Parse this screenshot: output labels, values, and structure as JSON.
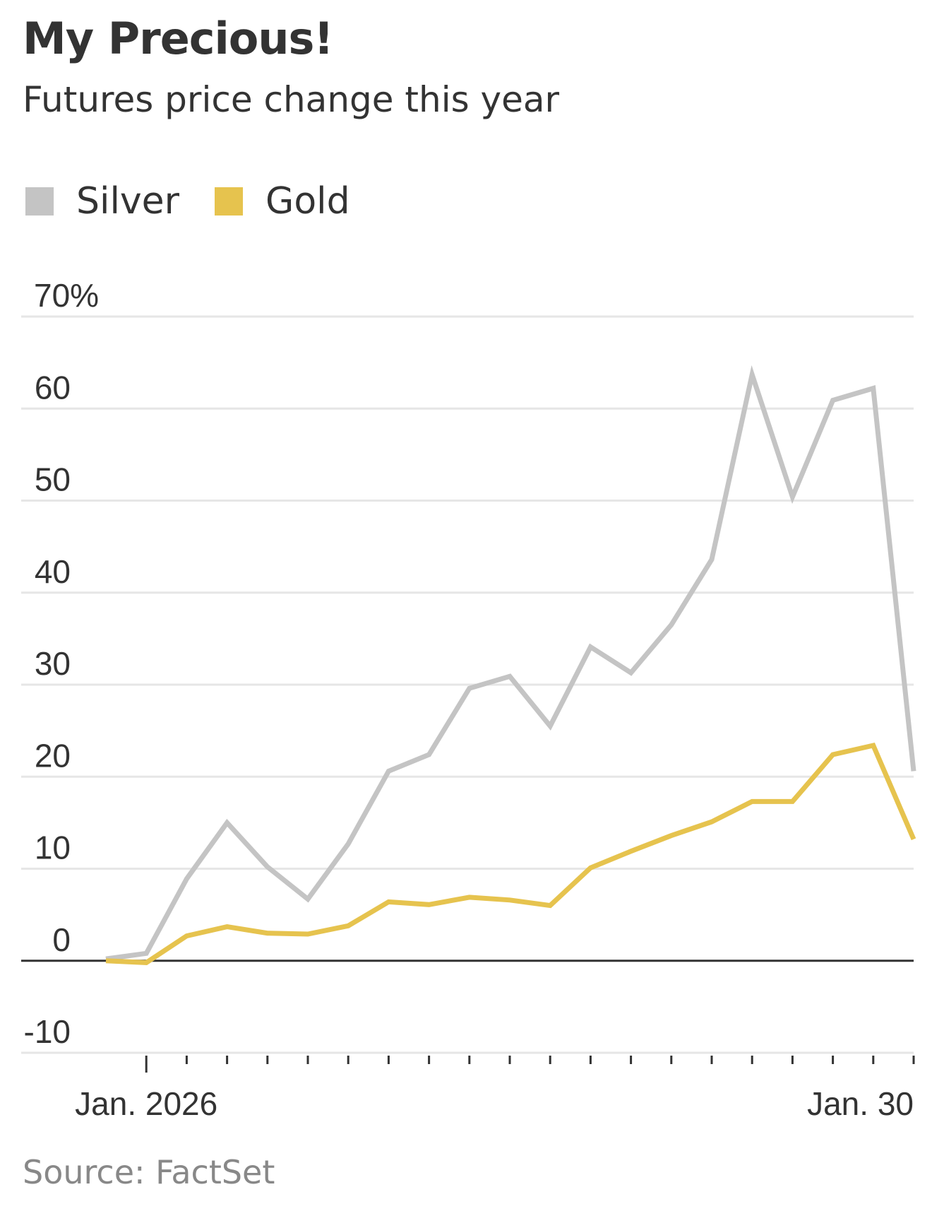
{
  "header": {
    "title": "My Precious!",
    "subtitle": "Futures price change this year"
  },
  "source": "Source: FactSet",
  "colors": {
    "silver": "#c4c4c4",
    "gold": "#e6c34e",
    "grid": "#e6e6e6",
    "zero_line": "#333333"
  },
  "chart_data": {
    "type": "line",
    "title": "My Precious!",
    "subtitle": "Futures price change this year",
    "legend_position": "top-left",
    "grid": true,
    "ylim": [
      -10,
      70
    ],
    "y_ticks": [
      70,
      60,
      50,
      40,
      30,
      20,
      10,
      0,
      -10
    ],
    "y_tick_labels": [
      "70%",
      "60",
      "50",
      "40",
      "30",
      "20",
      "10",
      "0",
      "-10"
    ],
    "x_tick_labels": [
      "Jan. 2026",
      "Jan. 30"
    ],
    "x_trading_days": 21,
    "series": [
      {
        "name": "Silver",
        "color": "#c4c4c4",
        "values": [
          0.2,
          0.8,
          8.9,
          15.0,
          10.2,
          6.7,
          12.7,
          20.6,
          22.4,
          29.6,
          30.9,
          25.5,
          34.1,
          31.3,
          36.5,
          43.6,
          63.7,
          50.4,
          60.9,
          62.2,
          20.6
        ]
      },
      {
        "name": "Gold",
        "color": "#e6c34e",
        "values": [
          0.0,
          -0.2,
          2.7,
          3.7,
          3.0,
          2.9,
          3.8,
          6.4,
          6.1,
          6.9,
          6.6,
          6.0,
          10.1,
          11.9,
          13.6,
          15.1,
          17.3,
          17.3,
          22.4,
          23.4,
          13.2
        ]
      }
    ]
  }
}
